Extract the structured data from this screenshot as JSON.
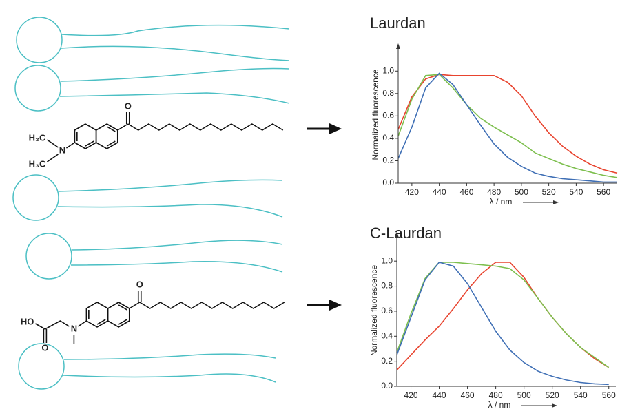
{
  "chart_data": [
    {
      "type": "line",
      "title": "Laurdan",
      "x": [
        410,
        420,
        430,
        440,
        450,
        460,
        470,
        480,
        490,
        500,
        510,
        520,
        530,
        540,
        550,
        560,
        570
      ],
      "series": [
        {
          "color": "#e8432e",
          "values": [
            0.48,
            0.77,
            0.93,
            0.97,
            0.96,
            0.96,
            0.96,
            0.96,
            0.9,
            0.78,
            0.6,
            0.45,
            0.33,
            0.24,
            0.17,
            0.12,
            0.09
          ]
        },
        {
          "color": "#7dbf4e",
          "values": [
            0.42,
            0.75,
            0.96,
            0.97,
            0.85,
            0.7,
            0.58,
            0.5,
            0.43,
            0.36,
            0.27,
            0.22,
            0.17,
            0.13,
            0.1,
            0.07,
            0.05
          ]
        },
        {
          "color": "#3f6fb5",
          "values": [
            0.22,
            0.5,
            0.85,
            0.98,
            0.88,
            0.7,
            0.52,
            0.35,
            0.23,
            0.15,
            0.09,
            0.06,
            0.04,
            0.03,
            0.02,
            0.01,
            0.01
          ]
        }
      ],
      "xlim": [
        410,
        570
      ],
      "ylim": [
        0,
        1.1
      ],
      "xticks": [
        420,
        440,
        460,
        480,
        500,
        520,
        540,
        560
      ],
      "yticks": [
        {
          "value": 0,
          "label": "0.0"
        },
        {
          "value": 0.2,
          "label": "0.2"
        },
        {
          "value": 0.4,
          "label": "0.4"
        },
        {
          "value": 0.6,
          "label": "0.6"
        },
        {
          "value": 0.8,
          "label": "0.8"
        },
        {
          "value": 1,
          "label": "1.0"
        }
      ],
      "xlabel": "λ / nm",
      "ylabel": "Normalized fluorescence"
    },
    {
      "type": "line",
      "title": "C-Laurdan",
      "x": [
        410,
        420,
        430,
        440,
        450,
        460,
        470,
        480,
        490,
        500,
        510,
        520,
        530,
        540,
        550,
        560
      ],
      "series": [
        {
          "color": "#e8432e",
          "values": [
            0.13,
            0.25,
            0.37,
            0.48,
            0.62,
            0.77,
            0.9,
            0.99,
            0.99,
            0.87,
            0.7,
            0.55,
            0.42,
            0.31,
            0.22,
            0.15
          ]
        },
        {
          "color": "#7dbf4e",
          "values": [
            0.27,
            0.58,
            0.86,
            0.99,
            0.99,
            0.98,
            0.97,
            0.96,
            0.94,
            0.85,
            0.7,
            0.55,
            0.42,
            0.31,
            0.23,
            0.15
          ]
        },
        {
          "color": "#3f6fb5",
          "values": [
            0.25,
            0.55,
            0.85,
            0.99,
            0.96,
            0.82,
            0.63,
            0.44,
            0.29,
            0.19,
            0.12,
            0.08,
            0.05,
            0.03,
            0.02,
            0.015
          ]
        }
      ],
      "xlim": [
        410,
        565
      ],
      "ylim": [
        0,
        1.1
      ],
      "xticks": [
        420,
        440,
        460,
        480,
        500,
        520,
        540,
        560
      ],
      "yticks": [
        {
          "value": 0,
          "label": "0.0"
        },
        {
          "value": 0.2,
          "label": "0.2"
        },
        {
          "value": 0.4,
          "label": "0.4"
        },
        {
          "value": 0.6,
          "label": "0.6"
        },
        {
          "value": 0.8,
          "label": "0.8"
        },
        {
          "value": 1,
          "label": "1.0"
        }
      ],
      "xlabel": "λ / nm",
      "ylabel": "Normalized fluorescence"
    }
  ],
  "molecules": [
    {
      "carbonyl": "O",
      "amine": "N",
      "methyl_top": "H₃C",
      "methyl_bottom": "H₃C"
    },
    {
      "carbonyl": "O",
      "amine": "N",
      "acid_oh": "HO",
      "acid_o": "O"
    }
  ]
}
